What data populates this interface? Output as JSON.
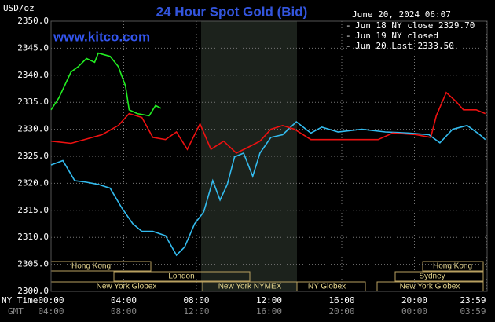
{
  "chart_data": {
    "type": "line",
    "title": "24 Hour Spot Gold (Bid)",
    "unit_label": "USD/oz",
    "timestamp": "June 20, 2024 06:07",
    "watermark": "www.kitco.com",
    "ylim": [
      2300,
      2350
    ],
    "yticks": [
      {
        "value": 2300,
        "label": "2300.0"
      },
      {
        "value": 2305,
        "label": "2305.0"
      },
      {
        "value": 2310,
        "label": "2310.0"
      },
      {
        "value": 2315,
        "label": "2315.0"
      },
      {
        "value": 2320,
        "label": "2320.0"
      },
      {
        "value": 2325,
        "label": "2325.0"
      },
      {
        "value": 2330,
        "label": "2330.0"
      },
      {
        "value": 2335,
        "label": "2335.0"
      },
      {
        "value": 2340,
        "label": "2340.0"
      },
      {
        "value": 2345,
        "label": "2345.0"
      },
      {
        "value": 2350,
        "label": "2350.0"
      }
    ],
    "xlim": [
      0,
      24
    ],
    "xticks": [
      {
        "value": 0,
        "label": "00:00"
      },
      {
        "value": 4,
        "label": "04:00"
      },
      {
        "value": 8,
        "label": "08:00"
      },
      {
        "value": 12,
        "label": "12:00"
      },
      {
        "value": 16,
        "label": "16:00"
      },
      {
        "value": 20,
        "label": "20:00"
      },
      {
        "value": 23.98,
        "label": "23:59"
      }
    ],
    "x_axis_label": "NY Time",
    "x2_axis_label": "GMT",
    "x2_tick_labels": [
      "04:00",
      "08:00",
      "12:00",
      "16:00",
      "20:00",
      "00:00",
      "03:59"
    ],
    "grid": true,
    "sessions": [
      "Hong Kong",
      "London",
      "New York Globex",
      "New York NYMEX",
      "NY Globex",
      "Hong Kong",
      "Sydney",
      "New York Globex"
    ],
    "series": [
      {
        "name": "Jun 18 NY close 2329.70",
        "color": "#33bbee",
        "x": [
          0,
          0.65,
          1.3,
          1.95,
          2.6,
          3.25,
          3.9,
          4.5,
          5.0,
          5.6,
          6.3,
          6.9,
          7.35,
          7.9,
          8.4,
          8.9,
          9.3,
          9.7,
          10.1,
          10.6,
          11.1,
          11.5,
          12.1,
          12.75,
          13.5,
          14.3,
          14.9,
          15.8,
          17.1,
          18.4,
          19.7,
          20.8,
          21.4,
          22.1,
          22.9,
          23.6,
          23.9
        ],
        "values": [
          2323.4,
          2324.2,
          2320.5,
          2320.2,
          2319.8,
          2319.1,
          2315.4,
          2312.5,
          2311.1,
          2311.1,
          2310.3,
          2306.7,
          2308.2,
          2312.5,
          2314.7,
          2320.5,
          2316.9,
          2319.8,
          2324.9,
          2325.6,
          2321.3,
          2325.6,
          2328.5,
          2329,
          2331.4,
          2329.3,
          2330.4,
          2329.5,
          2330,
          2329.5,
          2329.3,
          2329,
          2327.5,
          2330,
          2330.7,
          2329,
          2328.1
        ]
      },
      {
        "name": "Jun 19 NY closed",
        "color": "#ee1111",
        "x": [
          0,
          1.1,
          1.95,
          2.8,
          3.7,
          4.3,
          5.0,
          5.6,
          6.3,
          6.9,
          7.5,
          8.2,
          8.8,
          9.5,
          10.2,
          10.8,
          11.5,
          12.1,
          12.75,
          13.4,
          14.3,
          18,
          18.8,
          20.1,
          20.9,
          21.2,
          21.75,
          22.3,
          22.7,
          23.4,
          23.9
        ],
        "values": [
          2327.8,
          2327.4,
          2328.2,
          2329,
          2330.7,
          2332.9,
          2332.2,
          2328.5,
          2328.1,
          2329.5,
          2326.3,
          2331,
          2326.3,
          2327.8,
          2325.6,
          2326.6,
          2327.8,
          2330,
          2330.7,
          2330,
          2328.1,
          2328.1,
          2329.3,
          2329,
          2328.5,
          2332.5,
          2336.8,
          2335.1,
          2333.6,
          2333.6,
          2332.9
        ]
      },
      {
        "name": "Jun 20 Last 2333.50",
        "color": "#22ee22",
        "x": [
          0,
          0.43,
          1.1,
          1.5,
          1.95,
          2.4,
          2.6,
          3.25,
          3.7,
          4.1,
          4.3,
          4.75,
          5.4,
          5.75,
          6.05
        ],
        "values": [
          2333.6,
          2335.8,
          2340.6,
          2341.6,
          2343.1,
          2342.4,
          2344.1,
          2343.5,
          2341.6,
          2338,
          2333.6,
          2332.9,
          2332.5,
          2334.4,
          2333.9
        ]
      }
    ]
  }
}
